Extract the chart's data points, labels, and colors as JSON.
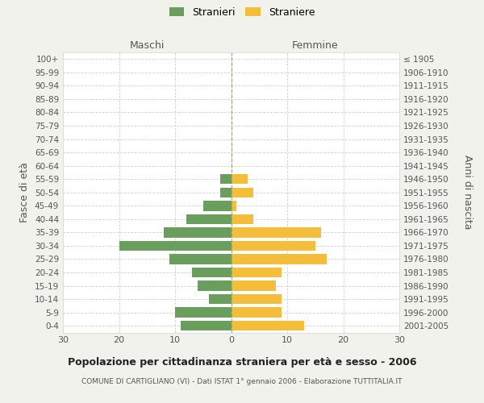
{
  "age_groups": [
    "100+",
    "95-99",
    "90-94",
    "85-89",
    "80-84",
    "75-79",
    "70-74",
    "65-69",
    "60-64",
    "55-59",
    "50-54",
    "45-49",
    "40-44",
    "35-39",
    "30-34",
    "25-29",
    "20-24",
    "15-19",
    "10-14",
    "5-9",
    "0-4"
  ],
  "birth_years": [
    "≤ 1905",
    "1906-1910",
    "1911-1915",
    "1916-1920",
    "1921-1925",
    "1926-1930",
    "1931-1935",
    "1936-1940",
    "1941-1945",
    "1946-1950",
    "1951-1955",
    "1956-1960",
    "1961-1965",
    "1966-1970",
    "1971-1975",
    "1976-1980",
    "1981-1985",
    "1986-1990",
    "1991-1995",
    "1996-2000",
    "2001-2005"
  ],
  "males": [
    0,
    0,
    0,
    0,
    0,
    0,
    0,
    0,
    0,
    2,
    2,
    5,
    8,
    12,
    20,
    11,
    7,
    6,
    4,
    10,
    9
  ],
  "females": [
    0,
    0,
    0,
    0,
    0,
    0,
    0,
    0,
    0,
    3,
    4,
    1,
    4,
    16,
    15,
    17,
    9,
    8,
    9,
    9,
    13
  ],
  "male_color": "#6a9e5c",
  "female_color": "#f5be3a",
  "background_color": "#f2f2ec",
  "plot_background": "#ffffff",
  "grid_color": "#cccccc",
  "title": "Popolazione per cittadinanza straniera per età e sesso - 2006",
  "subtitle": "COMUNE DI CARTIGLIANO (VI) - Dati ISTAT 1° gennaio 2006 - Elaborazione TUTTITALIA.IT",
  "xlabel_left": "Maschi",
  "xlabel_right": "Femmine",
  "ylabel_left": "Fasce di età",
  "ylabel_right": "Anni di nascita",
  "legend_males": "Stranieri",
  "legend_females": "Straniere",
  "xlim": 30,
  "center_line_color": "#aaa855"
}
